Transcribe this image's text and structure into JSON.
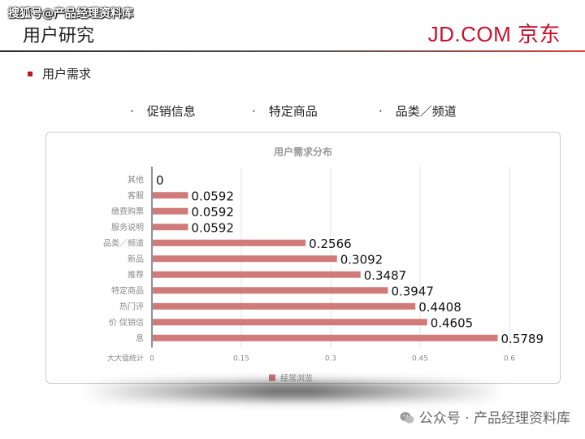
{
  "watermark": "搜狐号@产品经理资料库",
  "page_title": "用户研究",
  "brand": "JD.COM 京东",
  "section": "用户需求",
  "topics": [
    "特定商品",
    "品类／频道"
  ],
  "topic_first": "促销信息",
  "bullet_char": "·",
  "footer": "公众号 · 产品经理资料库",
  "colors": {
    "bar": "#d07a7a",
    "accent": "#c8102e"
  },
  "chart_data": {
    "type": "bar",
    "orientation": "horizontal",
    "title": "用户需求分布",
    "categories": [
      "其他",
      "客服",
      "缴费购票",
      "服务说明",
      "品类／频道",
      "新品",
      "推荐",
      "特定商品",
      "热门评",
      "价 促销信",
      "息"
    ],
    "y_corner_label": "大大值统计",
    "series": [
      {
        "name": "经常浏览",
        "values": [
          0,
          0.0592,
          0.0592,
          0.0592,
          0.2566,
          0.3092,
          0.3487,
          0.3947,
          0.4408,
          0.4605,
          0.5789
        ]
      }
    ],
    "value_labels": [
      "0",
      "0.0592",
      "0.0592",
      "0.0592",
      "0.2566",
      "0.3092",
      "0.3487",
      "0.3947",
      "0.4408",
      "0.4605",
      "0.5789"
    ],
    "xlim": [
      0,
      0.6
    ],
    "xticks": [
      "0",
      "0.15",
      "0.3",
      "0.45",
      "0.6"
    ],
    "grid": true,
    "legend_position": "bottom"
  }
}
